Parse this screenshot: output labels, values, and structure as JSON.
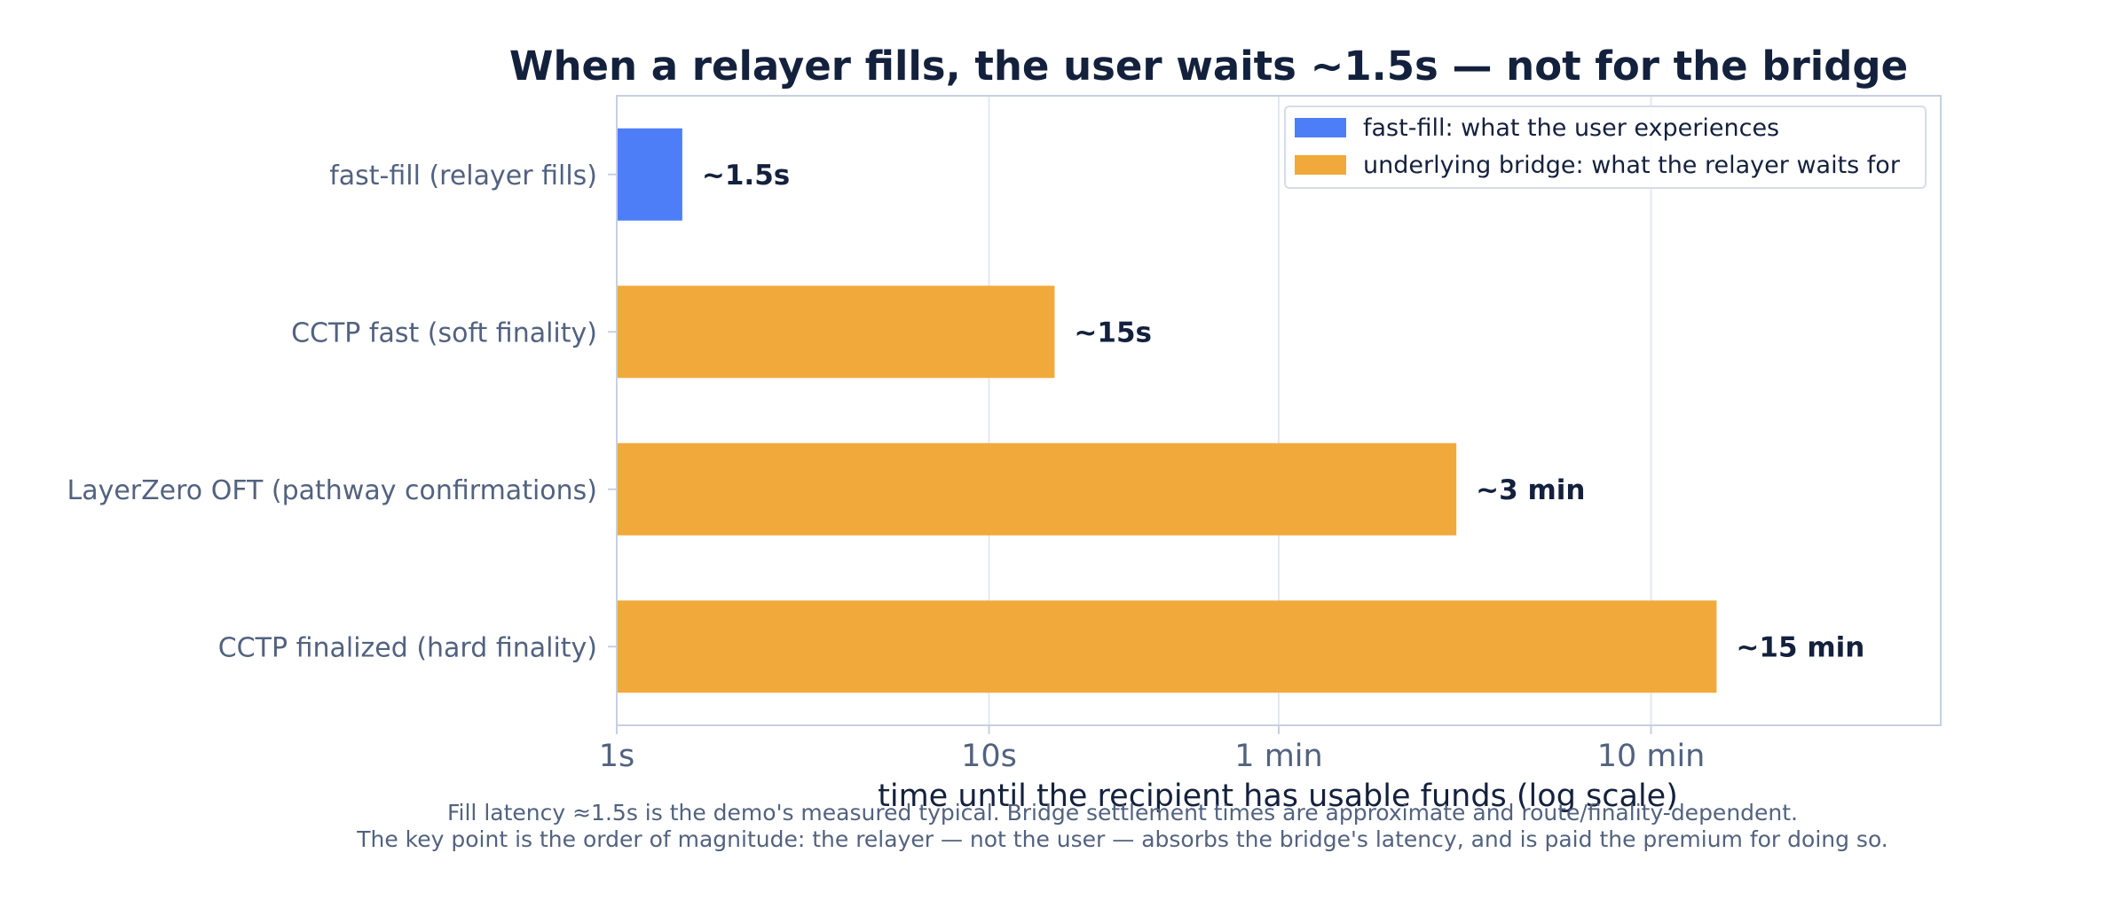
{
  "chart_data": {
    "type": "bar",
    "orientation": "horizontal",
    "title": "When a relayer fills, the user waits ~1.5s — not for the bridge",
    "xlabel": "time until the recipient has usable funds  (log scale)",
    "ylabel": "",
    "x_scale": "log",
    "xlim_seconds": [
      1,
      3600
    ],
    "x_ticks": [
      {
        "value": 1,
        "label": "1s"
      },
      {
        "value": 10,
        "label": "10s"
      },
      {
        "value": 60,
        "label": "1 min"
      },
      {
        "value": 600,
        "label": "10 min"
      }
    ],
    "grid": "vertical",
    "legend_position": "top-right",
    "categories": [
      "fast-fill  (relayer fills)",
      "CCTP fast  (soft finality)",
      "LayerZero OFT  (pathway confirmations)",
      "CCTP finalized  (hard finality)"
    ],
    "values_seconds": [
      1.5,
      15,
      180,
      900
    ],
    "data_labels": [
      "~1.5s",
      "~15s",
      "~3 min",
      "~15 min"
    ],
    "bar_series": [
      0,
      1,
      1,
      1
    ],
    "series": [
      {
        "name": "fast-fill: what the user experiences",
        "color": "#4d7ef7"
      },
      {
        "name": "underlying bridge: what the relayer waits for",
        "color": "#f2a93b"
      }
    ]
  },
  "caption": {
    "line1": "Fill latency ≈1.5s is the demo's measured typical. Bridge settlement times are approximate and route/finality-dependent.",
    "line2": "The key point is the order of magnitude: the relayer — not the user — absorbs the bridge's latency, and is paid the premium for doing so."
  },
  "colors": {
    "title": "#14213d",
    "muted_text": "#52627f",
    "axes_frame": "#c6d0df",
    "grid": "#e3e7f0"
  }
}
